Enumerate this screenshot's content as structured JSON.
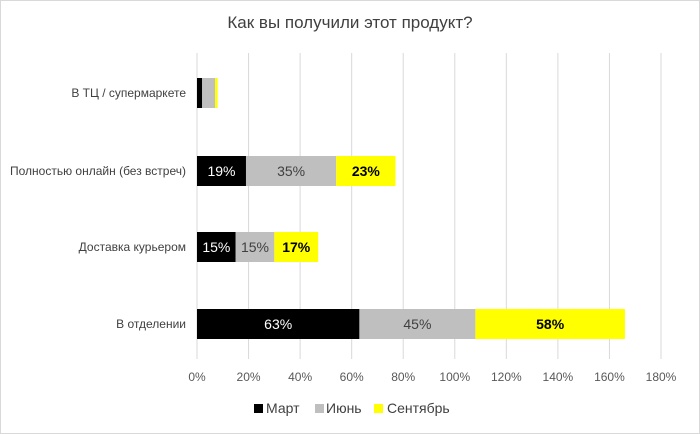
{
  "chart_data": {
    "type": "bar",
    "orientation": "horizontal",
    "stacked": true,
    "title": "Как вы получили этот продукт?",
    "xlabel": "",
    "ylabel": "",
    "categories": [
      "В ТЦ / супермаркете",
      "Полностью онлайн (без встреч)",
      "Доставка курьером",
      "В отделении"
    ],
    "xlim": [
      0,
      1.8
    ],
    "x_ticks": [
      0,
      0.2,
      0.4,
      0.6,
      0.8,
      1.0,
      1.2,
      1.4,
      1.6,
      1.8
    ],
    "x_tick_labels": [
      "0%",
      "20%",
      "40%",
      "60%",
      "80%",
      "100%",
      "120%",
      "140%",
      "160%",
      "180%"
    ],
    "grid": "vertical",
    "legend_position": "bottom",
    "series": [
      {
        "name": "Март",
        "color": "#000000",
        "values": [
          0.02,
          0.19,
          0.15,
          0.63
        ],
        "labels": [
          "",
          "19%",
          "15%",
          "63%"
        ],
        "label_color": "#ffffff",
        "label_bold": false
      },
      {
        "name": "Июнь",
        "color": "#bfbfbf",
        "values": [
          0.05,
          0.35,
          0.15,
          0.45
        ],
        "labels": [
          "",
          "35%",
          "15%",
          "45%"
        ],
        "label_color": "#404040",
        "label_bold": false
      },
      {
        "name": "Сентябрь",
        "color": "#ffff00",
        "values": [
          0.01,
          0.23,
          0.17,
          0.58
        ],
        "labels": [
          "",
          "23%",
          "17%",
          "58%"
        ],
        "label_color": "#000000",
        "label_bold": true
      }
    ]
  }
}
